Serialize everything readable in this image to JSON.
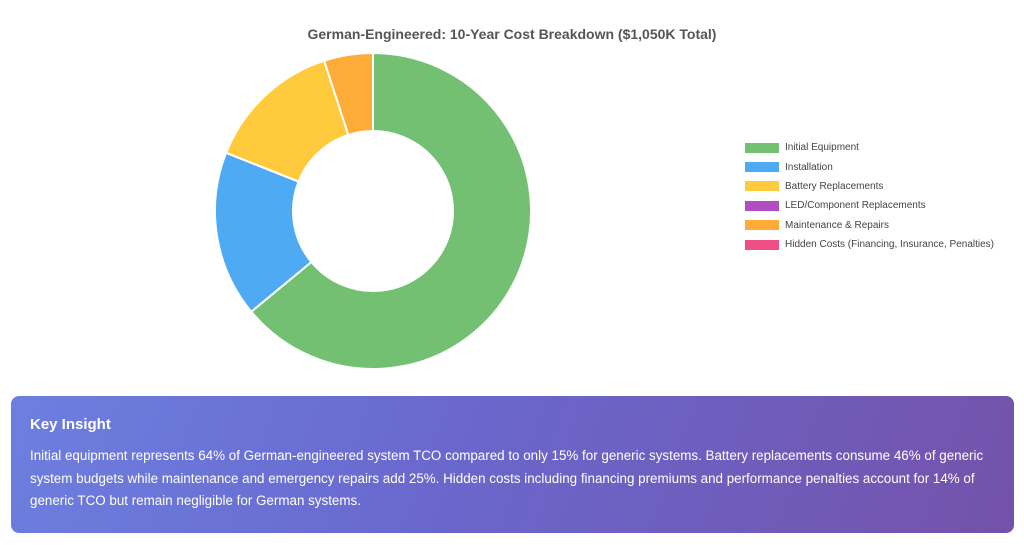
{
  "chart_data": {
    "type": "pie",
    "title": "German-Engineered: 10-Year Cost Breakdown ($1,050K Total)",
    "donut": true,
    "legend_position": "right",
    "categories": [
      "Initial Equipment",
      "Installation",
      "Battery Replacements",
      "LED/Component Replacements",
      "Maintenance & Repairs",
      "Hidden Costs (Financing, Insurance, Penalties)"
    ],
    "values": [
      64,
      17,
      14,
      0,
      5,
      0
    ],
    "colors": [
      "#73c073",
      "#4eabf3",
      "#ffca3c",
      "#b04ec1",
      "#ffab38",
      "#ef4e86"
    ]
  },
  "insight": {
    "title": "Key Insight",
    "text": "Initial equipment represents 64% of German-engineered system TCO compared to only 15% for generic systems. Battery replacements consume 46% of generic system budgets while maintenance and emergency repairs add 25%. Hidden costs including financing premiums and performance penalties account for 14% of generic TCO but remain negligible for German systems."
  }
}
